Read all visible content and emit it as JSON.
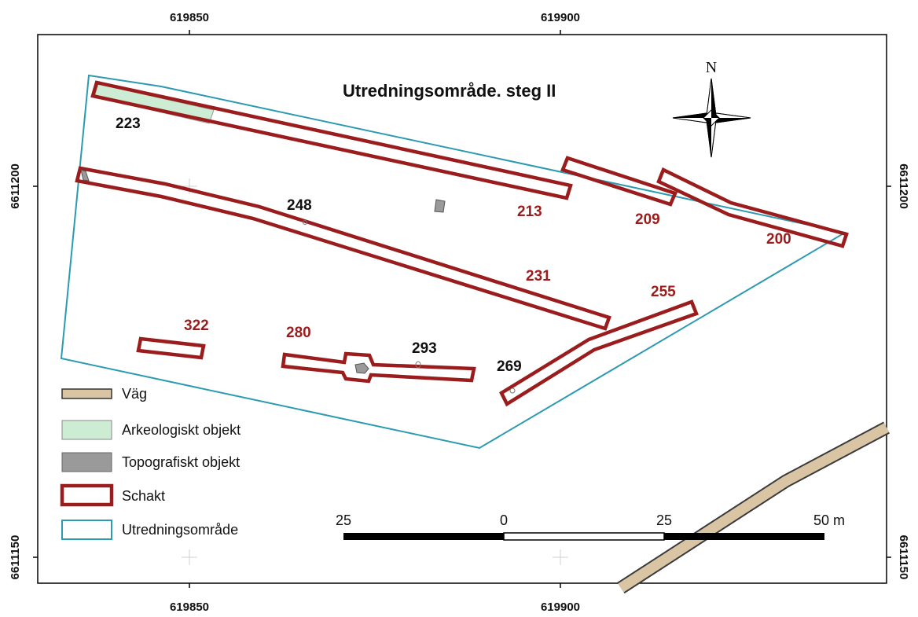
{
  "title": "Utredningsområde. steg II",
  "north_label": "N",
  "coords": {
    "x_left": "619850",
    "x_right": "619900",
    "y_top": "6611200",
    "y_bottom": "6611150"
  },
  "trench_labels": [
    "223",
    "248",
    "213",
    "209",
    "200",
    "231",
    "255",
    "322",
    "280",
    "293",
    "269"
  ],
  "legend": [
    {
      "label": "Väg",
      "color": "#d9c4a4"
    },
    {
      "label": "Arkeologiskt objekt",
      "color": "#ccecd4"
    },
    {
      "label": "Topografiskt objekt",
      "color": "#9a9a9a"
    },
    {
      "label": "Schakt",
      "color": "#9b1c1c"
    },
    {
      "label": "Utredningsområde",
      "color": "#2c9ab0"
    }
  ],
  "scale_bar": {
    "labels": [
      "25",
      "0",
      "25",
      "50 m"
    ]
  },
  "colors": {
    "trench": "#9b1c1c",
    "label_red": "#9b1c1c",
    "area": "#2c9ab0",
    "road": "#d9c4a4"
  }
}
